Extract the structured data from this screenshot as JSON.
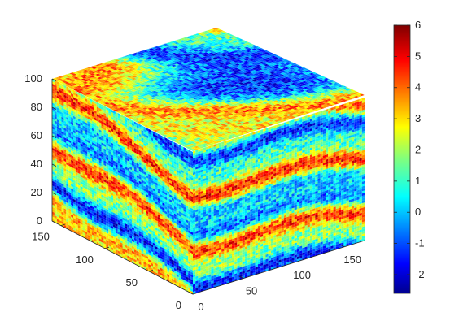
{
  "chart_data": {
    "type": "heatmap",
    "plot_kind": "3d-cube-volume-slices",
    "colormap": "jet",
    "axes": {
      "x": {
        "range": [
          0,
          170
        ],
        "ticks": [
          "0",
          "50",
          "100",
          "150"
        ]
      },
      "y": {
        "range": [
          0,
          160
        ],
        "ticks": [
          "0",
          "50",
          "100",
          "150"
        ]
      },
      "z": {
        "range": [
          0,
          100
        ],
        "ticks": [
          "0",
          "20",
          "40",
          "60",
          "80",
          "100"
        ]
      }
    },
    "colorbar": {
      "range": [
        -2.6,
        6
      ],
      "ticks": [
        "-2",
        "-1",
        "0",
        "1",
        "2",
        "3",
        "4",
        "5",
        "6"
      ]
    },
    "description_values": {
      "layers_on_front_face": 7,
      "layer_dip": "layers descend toward the front edge"
    },
    "colors": {
      "low": "#00008f",
      "mid": "#4dffb3",
      "high": "#800000"
    }
  }
}
